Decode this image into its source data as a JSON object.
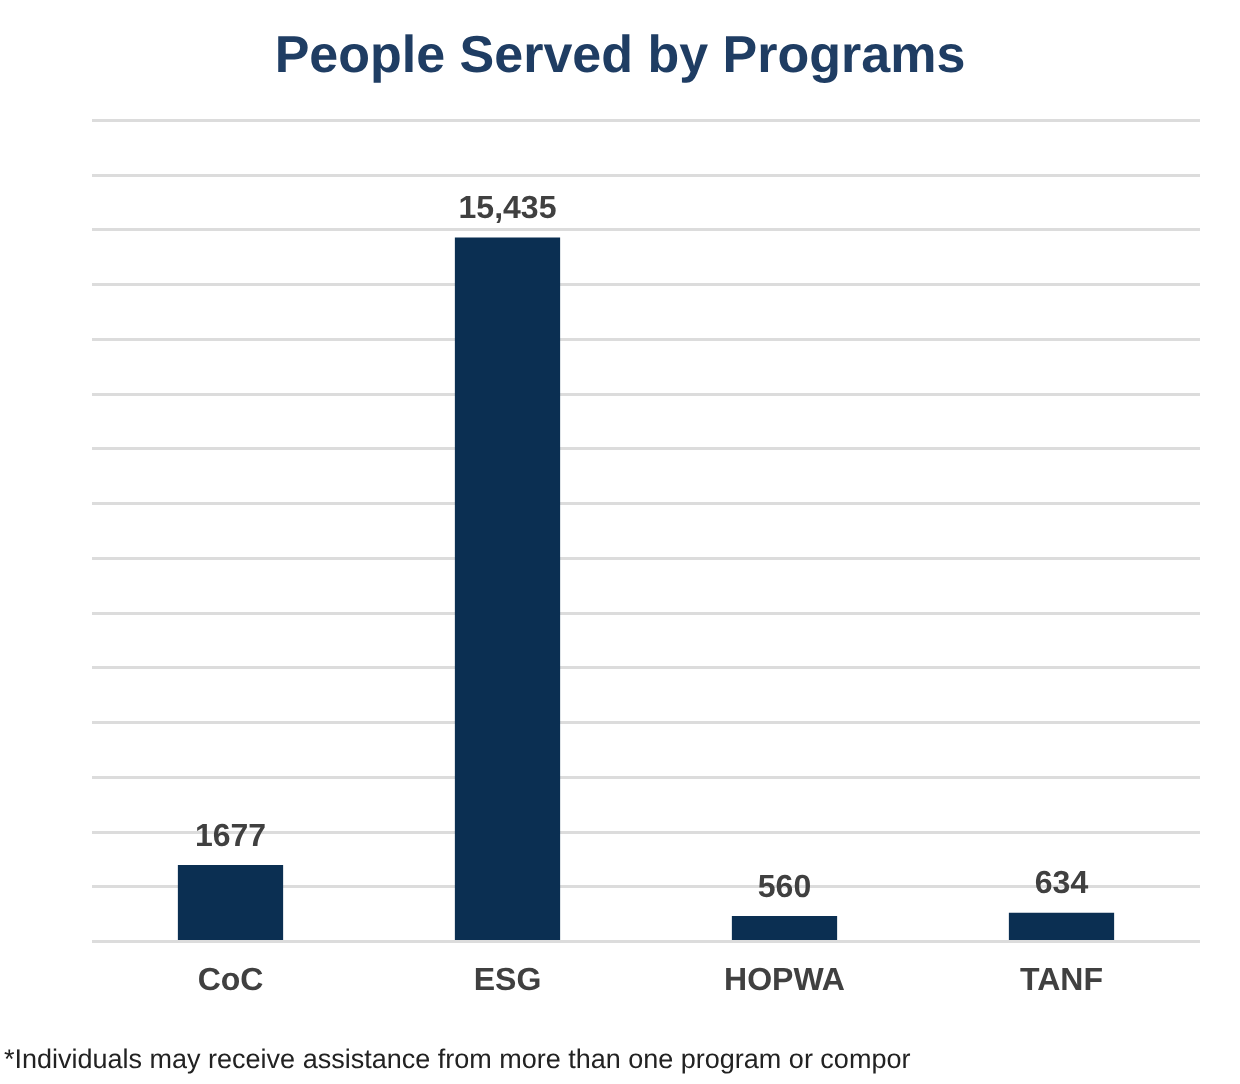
{
  "chart_data": {
    "type": "bar",
    "title": "People Served by Programs",
    "categories": [
      "CoC",
      "ESG",
      "HOPWA",
      "TANF"
    ],
    "values": [
      1677,
      15435,
      560,
      634
    ],
    "value_labels": [
      "1677",
      "15,435",
      "560",
      "634"
    ],
    "color": "#0b2f52",
    "ylim": [
      0,
      18000
    ],
    "yticks": [
      {
        "value": 0,
        "label": null
      },
      {
        "value": 1200,
        "label": null
      },
      {
        "value": 2400,
        "label": null
      },
      {
        "value": 3600,
        "label": null
      },
      {
        "value": 4800,
        "label": null
      },
      {
        "value": 6000,
        "label": null
      },
      {
        "value": 7200,
        "label": null
      },
      {
        "value": 8400,
        "label": null
      },
      {
        "value": 9600,
        "label": null
      },
      {
        "value": 10800,
        "label": null
      },
      {
        "value": 12000,
        "label": null
      },
      {
        "value": 13200,
        "label": null
      },
      {
        "value": 14400,
        "label": null
      },
      {
        "value": 15600,
        "label": null
      },
      {
        "value": 16800,
        "label": null
      },
      {
        "value": 18000,
        "label": null
      }
    ],
    "grid": "y",
    "legend": false,
    "annotations": [
      "*Individuals may receive assistance from more than one program or compor"
    ]
  }
}
